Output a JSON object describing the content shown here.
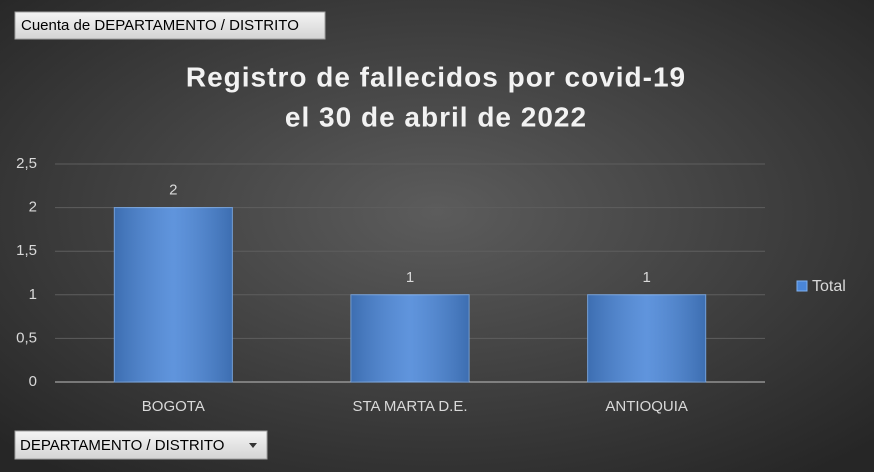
{
  "pivot": {
    "value_field": "Cuenta de DEPARTAMENTO / DISTRITO",
    "axis_field": "DEPARTAMENTO / DISTRITO"
  },
  "chart_data": {
    "type": "bar",
    "title": [
      "Registro de fallecidos por covid-19",
      "el 30 de abril de 2022"
    ],
    "categories": [
      "BOGOTA",
      "STA MARTA D.E.",
      "ANTIOQUIA"
    ],
    "series": [
      {
        "name": "Total",
        "color": "#4a86d8",
        "values": [
          2,
          1,
          1
        ]
      }
    ],
    "ylim": [
      0,
      2.5
    ],
    "yticks": [
      0,
      {
        "value": 0.5,
        "label": "0,5"
      },
      1,
      {
        "value": 1.5,
        "label": "1,5"
      },
      2,
      {
        "value": 2.5,
        "label": "2,5"
      }
    ],
    "grid": true,
    "legend": "right"
  }
}
